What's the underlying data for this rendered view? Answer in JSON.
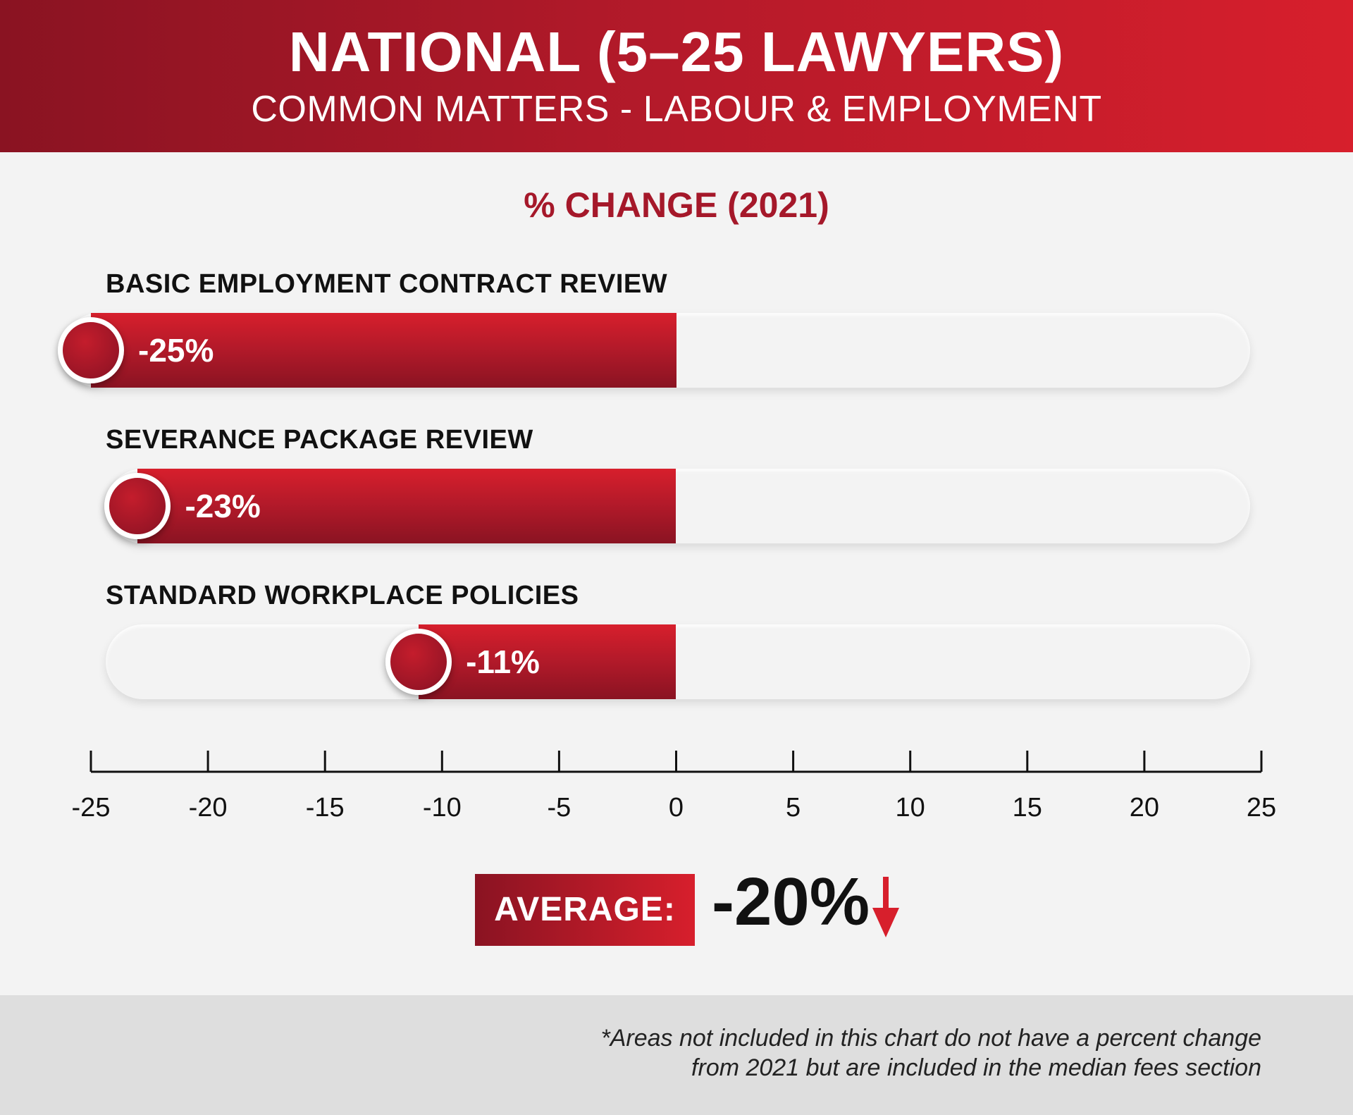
{
  "header": {
    "title": "NATIONAL (5–25 LAWYERS)",
    "subtitle": "COMMON MATTERS - LABOUR & EMPLOYMENT"
  },
  "chart_data": {
    "type": "bar",
    "title": "% CHANGE (2021)",
    "categories": [
      "BASIC EMPLOYMENT CONTRACT REVIEW",
      "SEVERANCE PACKAGE REVIEW",
      "STANDARD WORKPLACE POLICIES"
    ],
    "values": [
      -25,
      -23,
      -11
    ],
    "value_labels": [
      "-25%",
      "-23%",
      "-11%"
    ],
    "xlim": [
      -25,
      25
    ],
    "ticks": [
      "-25",
      "-20",
      "-15",
      "-10",
      "-5",
      "0",
      "5",
      "10",
      "15",
      "20",
      "25"
    ],
    "tick_values": [
      -25,
      -20,
      -15,
      -10,
      -5,
      0,
      5,
      10,
      15,
      20,
      25
    ],
    "grid": false
  },
  "average": {
    "label": "AVERAGE:",
    "value": "-20%",
    "direction": "down"
  },
  "footnote": {
    "line1": "*Areas not included in this chart do not have a percent change",
    "line2": "from 2021 but are included in the median fees section"
  },
  "colors": {
    "accent_dark": "#8a1322",
    "accent": "#d71f2c",
    "label_red": "#d71f2c"
  }
}
